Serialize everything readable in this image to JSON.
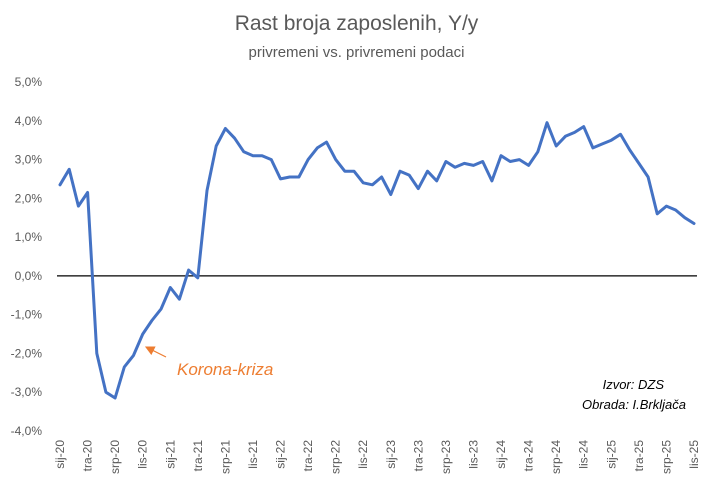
{
  "chart_data": {
    "type": "line",
    "title": "Rast broja zaposlenih, Y/y",
    "subtitle": "privremeni vs. privremeni podaci",
    "ylim": [
      -4.0,
      5.0
    ],
    "yticks": [
      "5,0%",
      "4,0%",
      "3,0%",
      "2,0%",
      "1,0%",
      "0,0%",
      "-1,0%",
      "-2,0%",
      "-3,0%",
      "-4,0%"
    ],
    "xtick_labels": [
      "sij-20",
      "tra-20",
      "srp-20",
      "lis-20",
      "sij-21",
      "tra-21",
      "srp-21",
      "lis-21",
      "sij-22",
      "tra-22",
      "srp-22",
      "lis-22",
      "sij-23",
      "tra-23",
      "srp-23",
      "lis-23",
      "sij-24",
      "tra-24",
      "srp-24",
      "lis-24",
      "sij-25",
      "tra-25",
      "srp-25",
      "lis-25"
    ],
    "series": [
      {
        "color": "#4472C4",
        "values": [
          2.35,
          2.75,
          1.8,
          2.15,
          -2.0,
          -3.0,
          -3.15,
          -2.35,
          -2.05,
          -1.5,
          -1.15,
          -0.85,
          -0.3,
          -0.6,
          0.15,
          -0.05,
          2.2,
          3.35,
          3.8,
          3.55,
          3.2,
          3.1,
          3.1,
          3.0,
          2.5,
          2.55,
          2.55,
          3.0,
          3.3,
          3.45,
          3.0,
          2.7,
          2.7,
          2.4,
          2.35,
          2.55,
          2.1,
          2.7,
          2.6,
          2.25,
          2.7,
          2.45,
          2.95,
          2.8,
          2.9,
          2.85,
          2.95,
          2.45,
          3.1,
          2.95,
          3.0,
          2.85,
          3.2,
          3.95,
          3.35,
          3.6,
          3.7,
          3.85,
          3.3,
          3.4,
          3.5,
          3.65,
          3.25,
          2.9,
          2.55,
          1.6,
          1.8,
          1.7,
          1.5,
          1.35
        ]
      }
    ],
    "annotations": [
      {
        "text": "Korona-kriza",
        "color": "#ED7D31",
        "arrow_to_index": 9
      }
    ],
    "source": [
      "Izvor: DZS",
      "Obrada: I.Brkljača"
    ],
    "grid": false,
    "legend": "none"
  }
}
